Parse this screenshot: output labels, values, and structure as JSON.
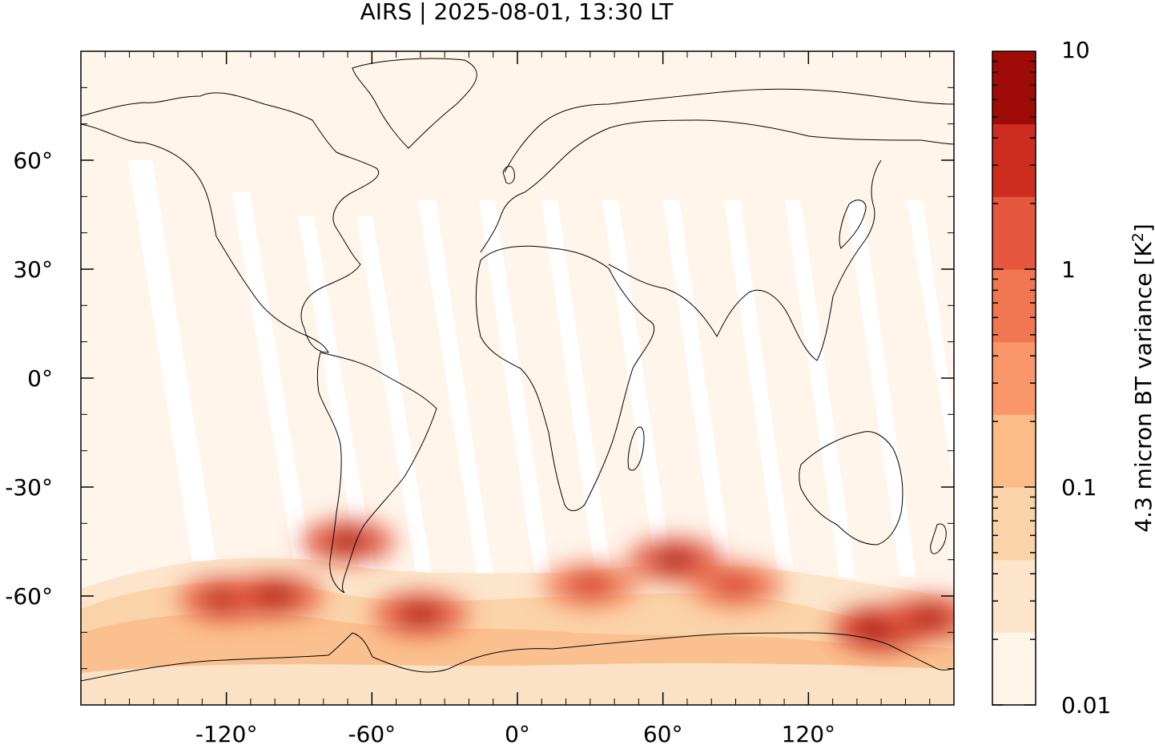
{
  "title": "AIRS | 2025-08-01, 13:30 LT",
  "map": {
    "projection": "plate-carree",
    "lon_range": [
      -180,
      180
    ],
    "lat_range": [
      -90,
      90
    ],
    "x_ticks": [
      {
        "value": -120,
        "label": "-120°"
      },
      {
        "value": -60,
        "label": "-60°"
      },
      {
        "value": 0,
        "label": "0°"
      },
      {
        "value": 60,
        "label": "60°"
      },
      {
        "value": 120,
        "label": "120°"
      }
    ],
    "y_ticks": [
      {
        "value": 60,
        "label": "60°"
      },
      {
        "value": 30,
        "label": "30°"
      },
      {
        "value": 0,
        "label": "0°"
      },
      {
        "value": -30,
        "label": "-30°"
      },
      {
        "value": -60,
        "label": "-60°"
      }
    ],
    "background_color": "#fff5eb",
    "coastline_color": "#000000",
    "hotspots": [
      {
        "lon": -120,
        "lat": -61,
        "level": 0.55
      },
      {
        "lon": -100,
        "lat": -60,
        "level": 0.4
      },
      {
        "lon": -70,
        "lat": -45,
        "level": 0.55
      },
      {
        "lon": -40,
        "lat": -65,
        "level": 0.55
      },
      {
        "lon": 30,
        "lat": -57,
        "level": 0.35
      },
      {
        "lon": 90,
        "lat": -57,
        "level": 0.35
      },
      {
        "lon": 150,
        "lat": -69,
        "level": 0.7
      },
      {
        "lon": 170,
        "lat": -66,
        "level": 0.4
      },
      {
        "lon": 65,
        "lat": -50,
        "level": 0.45
      }
    ]
  },
  "colorbar": {
    "label_main": "4.3 micron BT variance [K",
    "label_sup": "2",
    "label_end": "]",
    "scale": "log",
    "range": [
      0.01,
      10
    ],
    "tick_labels": [
      {
        "value": 10,
        "label": "10"
      },
      {
        "value": 1,
        "label": "1"
      },
      {
        "value": 0.1,
        "label": "0.1"
      },
      {
        "value": 0.01,
        "label": "0.01"
      }
    ],
    "colors": [
      "#fff5eb",
      "#fee6ce",
      "#fdd0a2",
      "#fdae6b",
      "#fd8d3c",
      "#f16913",
      "#e6553a",
      "#d32f1f",
      "#a50f15",
      "#7f0000"
    ],
    "colors_display": [
      "#fef4e8",
      "#fce5cb",
      "#fbd3a8",
      "#fbbc88",
      "#f9976a",
      "#f17752",
      "#e5573e",
      "#cc2d1f",
      "#9f0b06"
    ]
  }
}
